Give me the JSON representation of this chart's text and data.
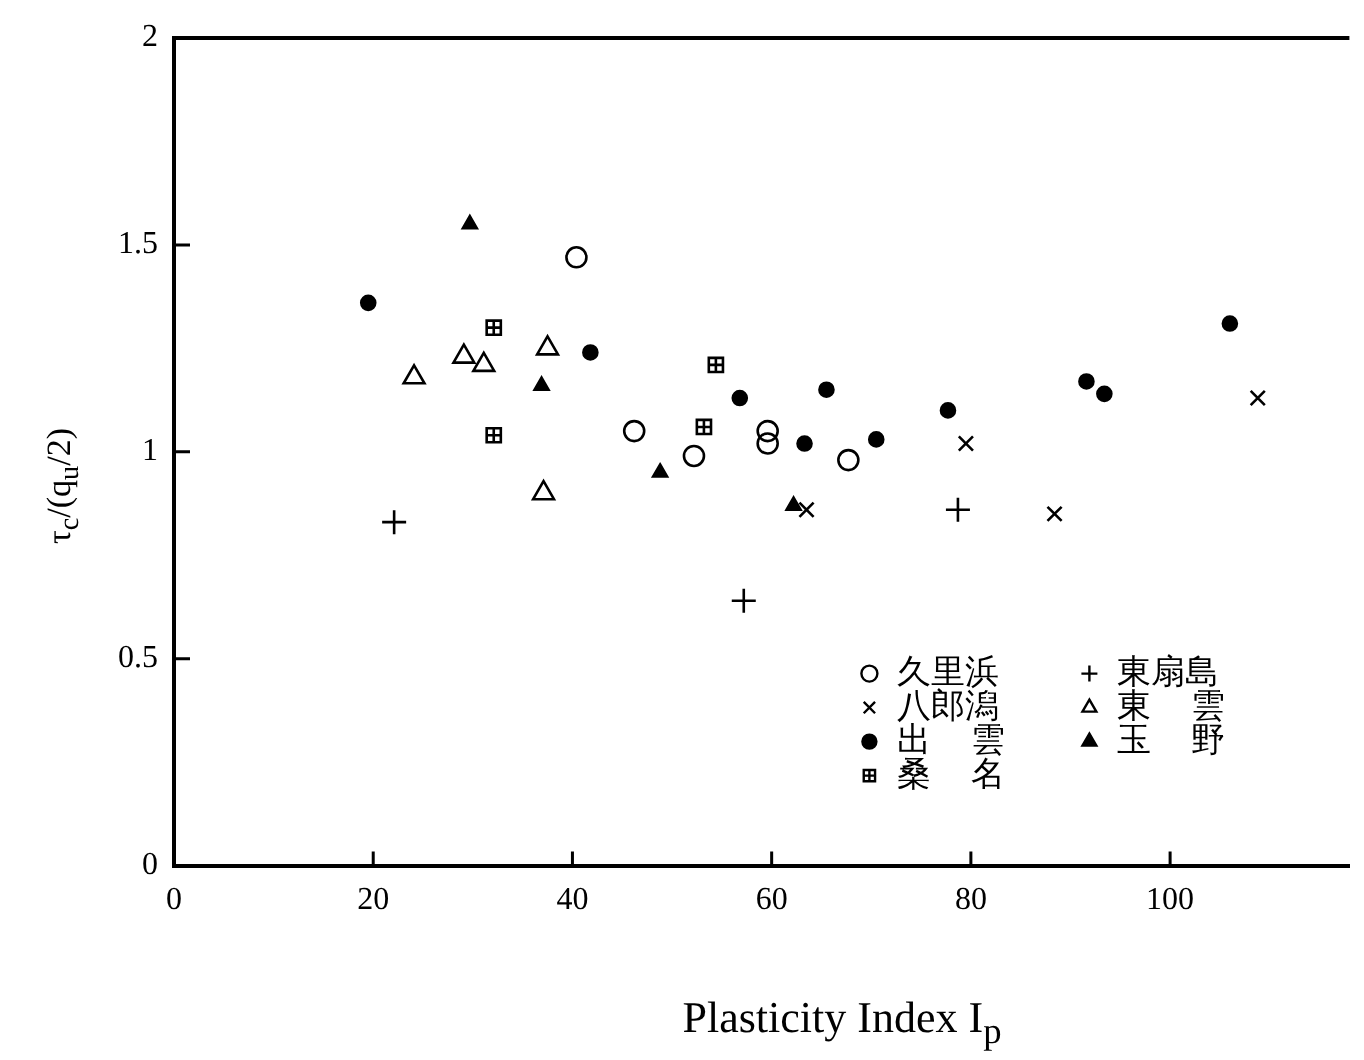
{
  "chart_data": {
    "type": "scatter",
    "xlabel": "Plasticity Index I$_{p}$",
    "ylabel": "τ$_{c}$/(q$_{u}$/2)",
    "xlim": [
      0,
      118
    ],
    "xticks": [
      0,
      20,
      40,
      60,
      80,
      100
    ],
    "ylim": [
      0,
      2
    ],
    "yticks": [
      0,
      0.5,
      1,
      1.5,
      2
    ],
    "grid": false,
    "legend": "bottom right",
    "series": [
      {
        "name": "久里浜",
        "color": "#000000",
        "marker": "circle-open",
        "x": [
          40.4,
          46.2,
          52.2,
          59.6,
          59.6,
          67.7
        ],
        "values": [
          1.47,
          1.05,
          0.99,
          1.05,
          1.02,
          0.98
        ]
      },
      {
        "name": "八郎潟",
        "color": "#000000",
        "marker": "x",
        "x": [
          63.5,
          79.5,
          88.4,
          108.8
        ],
        "values": [
          0.86,
          1.02,
          0.85,
          1.13
        ]
      },
      {
        "name": "出雲",
        "color": "#000000",
        "marker": "circle",
        "x": [
          19.5,
          41.8,
          56.8,
          63.3,
          65.5,
          70.5,
          77.7,
          91.6,
          93.4,
          106.0
        ],
        "values": [
          1.36,
          1.24,
          1.13,
          1.02,
          1.15,
          1.03,
          1.1,
          1.17,
          1.14,
          1.31
        ]
      },
      {
        "name": "桑名",
        "color": "#000000",
        "marker": "square-cross",
        "x": [
          32.1,
          32.1,
          54.4,
          53.2
        ],
        "values": [
          1.3,
          1.04,
          1.21,
          1.06
        ]
      },
      {
        "name": "東扇島",
        "color": "#000000",
        "marker": "cross",
        "x": [
          22.1,
          57.2,
          78.7
        ],
        "values": [
          0.83,
          0.64,
          0.86
        ]
      },
      {
        "name": "東雲",
        "color": "#000000",
        "marker": "triangle-open",
        "x": [
          24.1,
          29.1,
          31.1,
          37.5,
          37.1
        ],
        "values": [
          1.18,
          1.23,
          1.21,
          1.25,
          0.9
        ]
      },
      {
        "name": "玉野",
        "color": "#000000",
        "marker": "triangle",
        "x": [
          29.7,
          36.9,
          48.8,
          62.2
        ],
        "values": [
          1.55,
          1.16,
          0.95,
          0.87
        ]
      }
    ]
  }
}
